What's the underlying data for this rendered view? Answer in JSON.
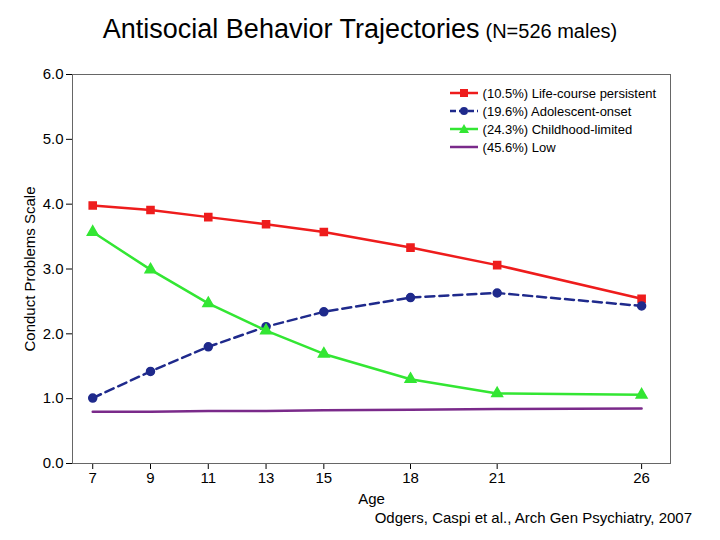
{
  "chart_data": {
    "type": "line",
    "title": "Antisocial Behavior Trajectories",
    "subtitle": "(N=526 males)",
    "caption": "Odgers, Caspi et al., Arch Gen Psychiatry, 2007",
    "x_label": "Age",
    "y_label": "Conduct Problems Scale",
    "x": [
      7,
      9,
      11,
      13,
      15,
      18,
      21,
      26
    ],
    "xlim": [
      6.3,
      27
    ],
    "xticks": [
      7,
      9,
      11,
      13,
      15,
      18,
      21,
      26
    ],
    "ylim": [
      0,
      6
    ],
    "yticks": [
      0,
      1,
      2,
      3,
      4,
      5,
      6
    ],
    "grid": false,
    "legend": "top-right",
    "series": [
      {
        "name": "(10.5%) Life-course persistent",
        "color": "#ee1c1c",
        "marker": "square",
        "line_style": "solid",
        "values": [
          3.98,
          3.91,
          3.8,
          3.69,
          3.57,
          3.33,
          3.06,
          2.54
        ]
      },
      {
        "name": "(19.6%) Adolescent-onset",
        "color": "#1f2a8c",
        "marker": "circle",
        "line_style": "dashed",
        "values": [
          1.01,
          1.42,
          1.8,
          2.11,
          2.34,
          2.56,
          2.63,
          2.43
        ]
      },
      {
        "name": "(24.3%) Childhood-limited",
        "color": "#33e633",
        "marker": "triangle",
        "line_style": "solid",
        "values": [
          3.57,
          2.99,
          2.47,
          2.05,
          1.69,
          1.3,
          1.08,
          1.06
        ]
      },
      {
        "name": "(45.6%) Low",
        "color": "#7a2a8a",
        "marker": "none",
        "line_style": "solid",
        "values": [
          0.8,
          0.8,
          0.81,
          0.81,
          0.82,
          0.83,
          0.84,
          0.85
        ]
      }
    ]
  }
}
